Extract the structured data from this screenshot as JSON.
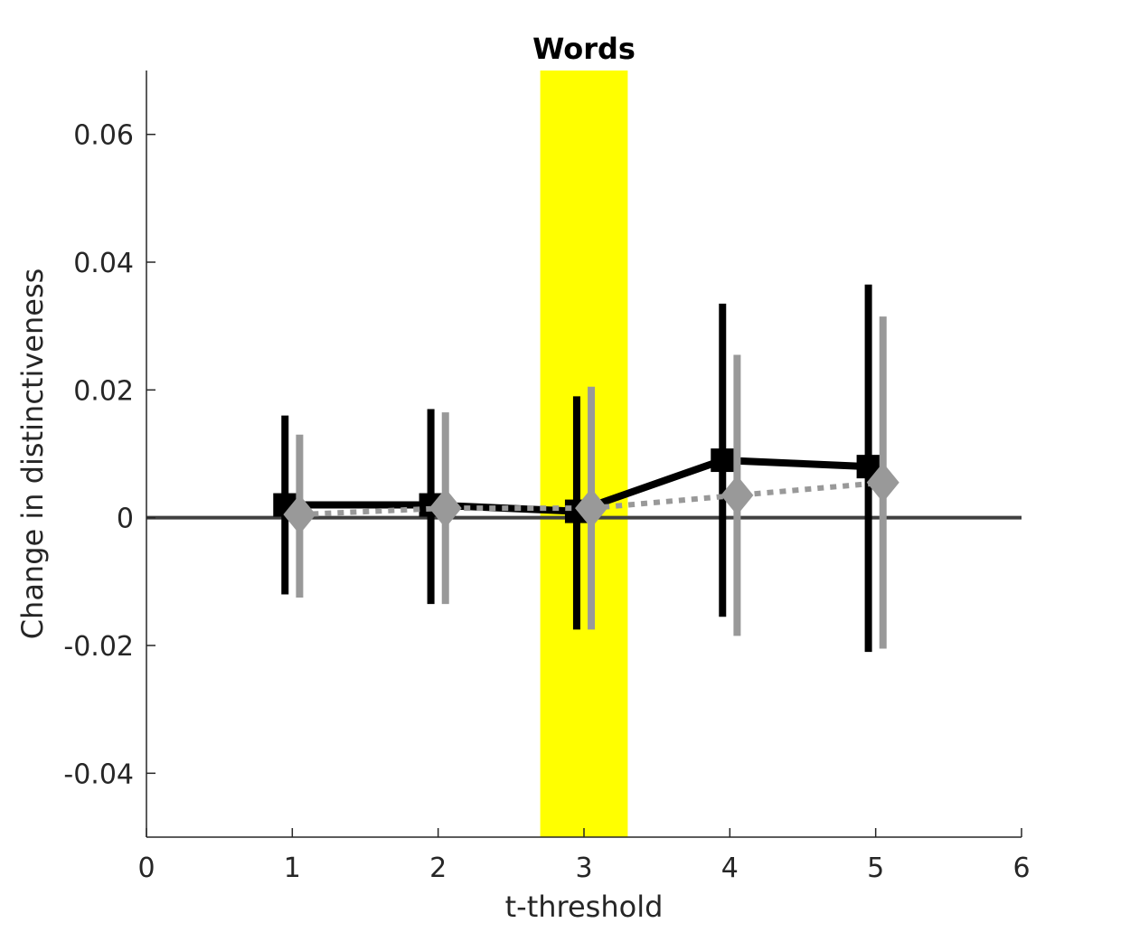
{
  "chart_data": {
    "type": "line",
    "title": "Words",
    "xlabel": "t-threshold",
    "ylabel": "Change in distinctiveness",
    "xlim": [
      0,
      6
    ],
    "ylim": [
      -0.05,
      0.07
    ],
    "xticks": [
      0,
      1,
      2,
      3,
      4,
      5,
      6
    ],
    "xtick_labels": [
      "0",
      "1",
      "2",
      "3",
      "4",
      "5",
      "6"
    ],
    "yticks": [
      -0.04,
      -0.02,
      0,
      0.02,
      0.04,
      0.06
    ],
    "ytick_labels": [
      "-0.04",
      "-0.02",
      "0",
      "0.02",
      "0.04",
      "0.06"
    ],
    "grid": false,
    "legend": "none",
    "highlight_band": {
      "x_range": [
        2.7,
        3.3
      ],
      "color": "#ffff00"
    },
    "reference_line": {
      "y": 0,
      "color": "#404040"
    },
    "series": [
      {
        "marker": "square",
        "line_style": "solid",
        "color": "#000000",
        "x": [
          0.95,
          1.95,
          2.95,
          3.95,
          4.95
        ],
        "y": [
          0.002,
          0.002,
          0.001,
          0.009,
          0.008
        ],
        "err_low": [
          -0.012,
          -0.0135,
          -0.0175,
          -0.0155,
          -0.021
        ],
        "err_high": [
          0.016,
          0.017,
          0.019,
          0.0335,
          0.0365
        ]
      },
      {
        "marker": "diamond",
        "line_style": "dotted",
        "color": "#999999",
        "x": [
          1.05,
          2.05,
          3.05,
          4.05,
          5.05
        ],
        "y": [
          0.0005,
          0.0015,
          0.0015,
          0.0035,
          0.0055
        ],
        "err_low": [
          -0.0125,
          -0.0135,
          -0.0175,
          -0.0185,
          -0.0205
        ],
        "err_high": [
          0.013,
          0.0165,
          0.0205,
          0.0255,
          0.0315
        ]
      }
    ]
  }
}
